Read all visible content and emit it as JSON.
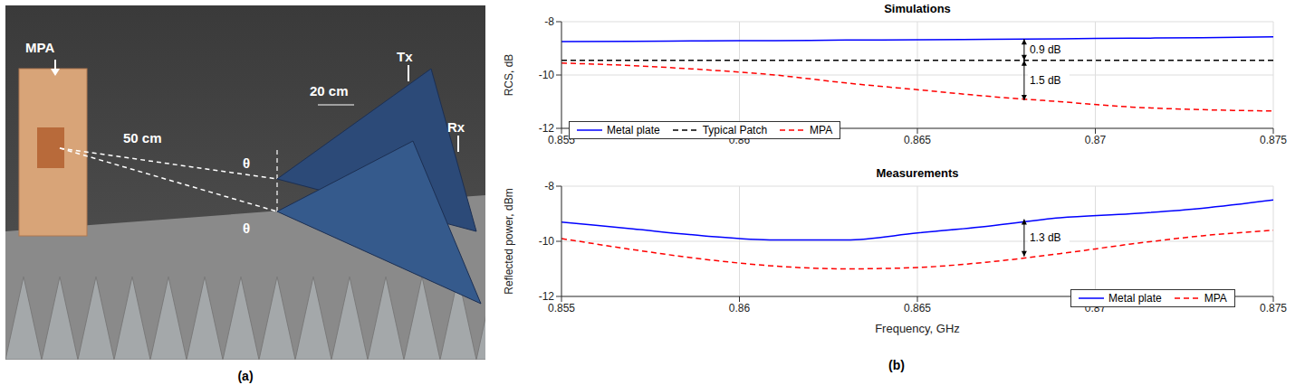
{
  "panel_a": {
    "caption": "(a)",
    "labels": {
      "plate": "MPA",
      "distance": "50 cm",
      "spacing": "20 cm",
      "tx": "Tx",
      "rx": "Rx",
      "angle": "θ"
    }
  },
  "panel_b_caption": "(b)",
  "chart_data": [
    {
      "type": "line",
      "title": "Simulations",
      "y_label": "RCS, dB",
      "x": [
        0.855,
        0.857,
        0.859,
        0.861,
        0.863,
        0.865,
        0.867,
        0.869,
        0.871,
        0.873,
        0.875
      ],
      "xlim": [
        0.855,
        0.875
      ],
      "xticks": [
        0.855,
        0.86,
        0.865,
        0.87,
        0.875
      ],
      "ylim": [
        -12,
        -8
      ],
      "yticks": [
        -12,
        -10,
        -8
      ],
      "grid": true,
      "legend": "lower left",
      "series": [
        {
          "name": "Metal plate",
          "color": "#0000ff",
          "line_style": "solid",
          "values": [
            -8.75,
            -8.74,
            -8.72,
            -8.71,
            -8.69,
            -8.68,
            -8.66,
            -8.64,
            -8.62,
            -8.6,
            -8.57
          ]
        },
        {
          "name": "Typical Patch",
          "color": "#000000",
          "line_style": "dashed",
          "values": [
            -9.45,
            -9.45,
            -9.45,
            -9.45,
            -9.45,
            -9.45,
            -9.45,
            -9.45,
            -9.45,
            -9.45,
            -9.45
          ]
        },
        {
          "name": "MPA",
          "color": "#ff0000",
          "line_style": "dashed",
          "values": [
            -9.55,
            -9.65,
            -9.8,
            -10.0,
            -10.3,
            -10.55,
            -10.8,
            -11.0,
            -11.2,
            -11.3,
            -11.35
          ]
        }
      ],
      "annotations": [
        {
          "text": "0.9 dB",
          "x": 0.868,
          "y1": -8.65,
          "y2": -9.45
        },
        {
          "text": "1.5 dB",
          "x": 0.868,
          "y1": -9.45,
          "y2": -10.95
        }
      ]
    },
    {
      "type": "line",
      "title": "Measurements",
      "y_label": "Reflected power, dBm",
      "x_label": "Frequency, GHz",
      "x": [
        0.855,
        0.857,
        0.859,
        0.861,
        0.863,
        0.865,
        0.867,
        0.869,
        0.871,
        0.873,
        0.875
      ],
      "xlim": [
        0.855,
        0.875
      ],
      "xticks": [
        0.855,
        0.86,
        0.865,
        0.87,
        0.875
      ],
      "ylim": [
        -12,
        -8
      ],
      "yticks": [
        -12,
        -10,
        -8
      ],
      "grid": true,
      "legend": "lower right",
      "series": [
        {
          "name": "Metal plate",
          "color": "#0000ff",
          "line_style": "solid",
          "values": [
            -9.3,
            -9.55,
            -9.8,
            -9.95,
            -9.95,
            -9.7,
            -9.45,
            -9.15,
            -9.0,
            -8.8,
            -8.5
          ]
        },
        {
          "name": "MPA",
          "color": "#ff0000",
          "line_style": "dashed",
          "values": [
            -9.9,
            -10.3,
            -10.65,
            -10.9,
            -11.0,
            -10.95,
            -10.75,
            -10.45,
            -10.1,
            -9.8,
            -9.6
          ]
        }
      ],
      "annotations": [
        {
          "text": "1.3 dB",
          "x": 0.868,
          "y1": -9.2,
          "y2": -10.55
        }
      ]
    }
  ]
}
